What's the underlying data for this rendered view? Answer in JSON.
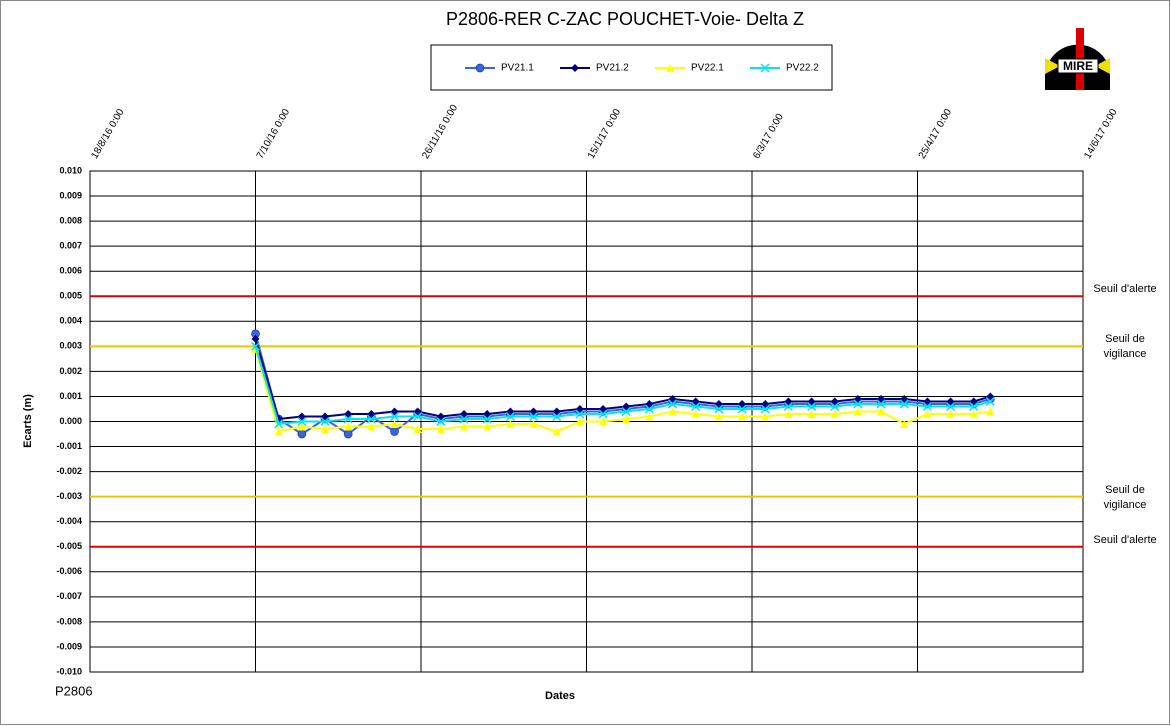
{
  "chart_data": {
    "type": "line",
    "title": "P2806-RER  C-ZAC POUCHET-Voie-  Delta Z",
    "x_label": "Dates",
    "y_label": "Ecarts (m)",
    "footer": "P2806",
    "logo_text": "MIRE",
    "grid": true,
    "xlim": [
      "2016-08-18",
      "2017-06-14"
    ],
    "xticks": [
      {
        "value": "2016-08-18",
        "label": "18/8/16 0:00"
      },
      {
        "value": "2016-10-07",
        "label": "7/10/16 0:00"
      },
      {
        "value": "2016-11-26",
        "label": "26/11/16 0:00"
      },
      {
        "value": "2017-01-15",
        "label": "15/1/17 0:00"
      },
      {
        "value": "2017-03-06",
        "label": "6/3/17 0:00"
      },
      {
        "value": "2017-04-25",
        "label": "25/4/17 0:00"
      },
      {
        "value": "2017-06-14",
        "label": "14/6/17 0:00"
      }
    ],
    "ylim": [
      -0.01,
      0.01
    ],
    "yticks": [
      {
        "value": 0.01,
        "label": "0.010"
      },
      0.009,
      0.008,
      0.007,
      0.006,
      0.005,
      0.004,
      0.003,
      0.002,
      0.001,
      {
        "value": 0,
        "label": "0.000"
      },
      -0.001,
      -0.002,
      -0.003,
      -0.004,
      -0.005,
      -0.006,
      -0.007,
      -0.008,
      -0.009,
      {
        "value": -0.01,
        "label": "-0.010"
      }
    ],
    "thresholds": [
      {
        "value": 0.005,
        "label": "Seuil d'alerte",
        "color": "#e00000"
      },
      {
        "value": 0.003,
        "label": "Seuil de vigilance",
        "color": "#e6c800"
      },
      {
        "value": -0.003,
        "label": "Seuil de vigilance",
        "color": "#e6c800"
      },
      {
        "value": -0.005,
        "label": "Seuil d'alerte",
        "color": "#e00000"
      }
    ],
    "x": [
      "2016-10-07",
      "2016-10-14",
      "2016-10-21",
      "2016-10-28",
      "2016-11-04",
      "2016-11-11",
      "2016-11-18",
      "2016-11-25",
      "2016-12-02",
      "2016-12-09",
      "2016-12-16",
      "2016-12-23",
      "2016-12-30",
      "2017-01-06",
      "2017-01-13",
      "2017-01-20",
      "2017-01-27",
      "2017-02-03",
      "2017-02-10",
      "2017-02-17",
      "2017-02-24",
      "2017-03-03",
      "2017-03-10",
      "2017-03-17",
      "2017-03-24",
      "2017-03-31",
      "2017-04-07",
      "2017-04-14",
      "2017-04-21",
      "2017-04-28",
      "2017-05-05",
      "2017-05-12",
      "2017-05-17"
    ],
    "series": [
      {
        "name": "PV21.1",
        "color": "#3c64dc",
        "marker": "circle",
        "values": [
          0.0035,
          0.0001,
          -0.0005,
          0.0001,
          -0.0005,
          0.0002,
          -0.0004,
          0.0003,
          0.0001,
          0.0002,
          0.0002,
          0.0003,
          0.0003,
          0.0003,
          0.0004,
          0.0004,
          0.0005,
          0.0006,
          0.0008,
          0.0007,
          0.0006,
          0.0006,
          0.0006,
          0.0007,
          0.0007,
          0.0007,
          0.0008,
          0.0008,
          0.0008,
          0.0007,
          0.0007,
          0.0007,
          0.0009
        ]
      },
      {
        "name": "PV21.2",
        "color": "#000080",
        "marker": "diamond",
        "values": [
          0.0033,
          0.0001,
          0.0002,
          0.0002,
          0.0003,
          0.0003,
          0.0004,
          0.0004,
          0.0002,
          0.0003,
          0.0003,
          0.0004,
          0.0004,
          0.0004,
          0.0005,
          0.0005,
          0.0006,
          0.0007,
          0.0009,
          0.0008,
          0.0007,
          0.0007,
          0.0007,
          0.0008,
          0.0008,
          0.0008,
          0.0009,
          0.0009,
          0.0009,
          0.0008,
          0.0008,
          0.0008,
          0.001
        ]
      },
      {
        "name": "PV22.1",
        "color": "#ffff00",
        "marker": "triangle",
        "values": [
          0.0029,
          -0.0004,
          -0.0002,
          -0.0003,
          -0.0002,
          -0.0002,
          -0.0001,
          -0.0003,
          -0.0003,
          -0.0002,
          -0.0002,
          -0.0001,
          -0.0001,
          -0.0004,
          0,
          0,
          0.0001,
          0.0002,
          0.0004,
          0.0003,
          0.0002,
          0.0002,
          0.0002,
          0.0003,
          0.0003,
          0.0003,
          0.0004,
          0.0004,
          -0.0001,
          0.0003,
          0.0003,
          0.0003,
          0.0004
        ]
      },
      {
        "name": "PV22.2",
        "color": "#00e5ee",
        "marker": "x",
        "values": [
          0.003,
          -0.0001,
          0,
          0,
          0.0001,
          0.0001,
          0.0002,
          0.0002,
          0,
          0.0001,
          0.0001,
          0.0002,
          0.0002,
          0.0002,
          0.0003,
          0.0003,
          0.0004,
          0.0005,
          0.0007,
          0.0006,
          0.0005,
          0.0005,
          0.0005,
          0.0006,
          0.0006,
          0.0006,
          0.0007,
          0.0007,
          0.0007,
          0.0006,
          0.0006,
          0.0006,
          0.0008
        ]
      }
    ]
  }
}
